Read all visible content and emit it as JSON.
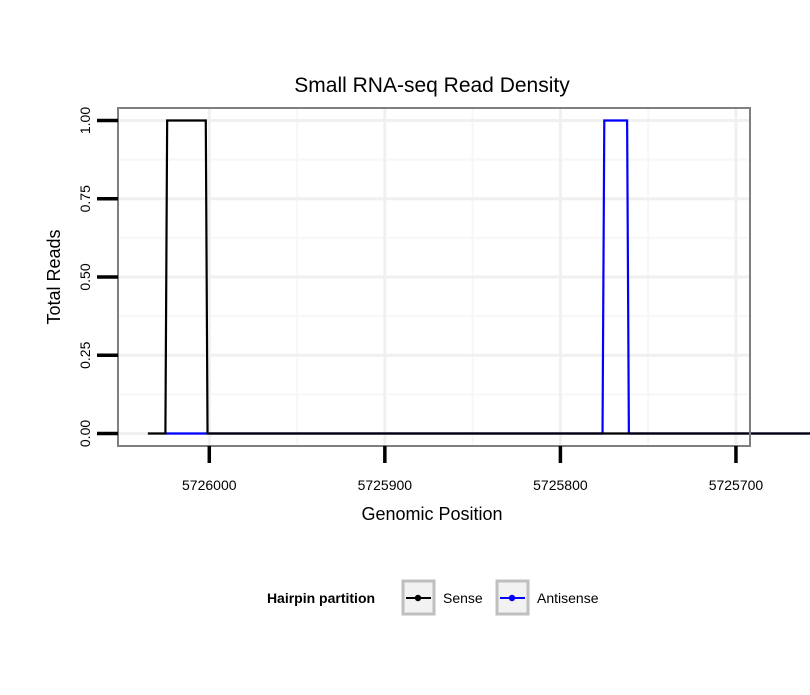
{
  "chart_data": {
    "type": "line",
    "title": "Small RNA-seq Read Density",
    "xlabel": "Genomic Position",
    "ylabel": "Total Reads",
    "xlim": [
      5726052,
      5725692
    ],
    "ylim": [
      -0.04,
      1.04
    ],
    "x_reversed": true,
    "x_ticks": [
      5726000,
      5725900,
      5725800,
      5725700
    ],
    "x_tick_labels": [
      "5726000",
      "5725900",
      "5725800",
      "5725700"
    ],
    "y_ticks": [
      0,
      0.25,
      0.5,
      0.75,
      1
    ],
    "y_tick_labels": [
      "0.00",
      "0.25",
      "0.50",
      "0.75",
      "1.00"
    ],
    "grid": true,
    "legend": {
      "title": "Hairpin partition",
      "placement": "bottom",
      "entries": [
        "Sense",
        "Antisense"
      ]
    },
    "series": [
      {
        "name": "Sense",
        "color": "#000000",
        "x": [
          5726035,
          5726025,
          5726024,
          5726002,
          5726001,
          5725657
        ],
        "y": [
          0,
          0,
          1,
          1,
          0,
          0
        ]
      },
      {
        "name": "Antisense",
        "color": "#0000ff",
        "x": [
          5726025,
          5726000,
          5725776,
          5725775,
          5725762,
          5725761,
          5725657
        ],
        "y": [
          0,
          0,
          0,
          1,
          1,
          0,
          0
        ]
      }
    ]
  }
}
